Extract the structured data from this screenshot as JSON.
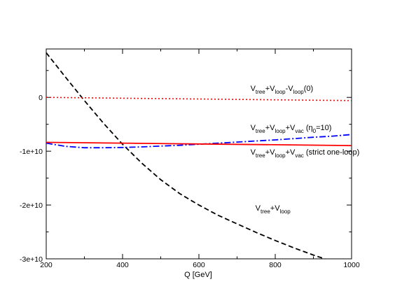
{
  "chart_data": {
    "type": "line",
    "xlabel": "Q [GeV]",
    "ylabel": "",
    "xlim": [
      200,
      1000
    ],
    "ylim": [
      -30000000000,
      9000000000
    ],
    "x_ticks": [
      200,
      400,
      600,
      800,
      1000
    ],
    "x_tick_labels": [
      "200",
      "400",
      "600",
      "800",
      "1000"
    ],
    "y_ticks": [
      0,
      -10000000000,
      -20000000000,
      -30000000000
    ],
    "y_tick_labels": [
      "0",
      "-1e+10",
      "-2e+10",
      "-3e+10"
    ],
    "grid": false,
    "series": [
      {
        "key": "tree_loop",
        "color": "#000000",
        "dash": "dashed",
        "x": [
          200,
          250,
          300,
          350,
          400,
          450,
          500,
          550,
          600,
          650,
          700,
          750,
          800,
          850,
          900,
          950,
          960
        ],
        "y": [
          8300000000,
          3800000000,
          -600000000,
          -4800000000,
          -8700000000,
          -12200000000,
          -15300000000,
          -17900000000,
          -20000000000,
          -21900000000,
          -23500000000,
          -25100000000,
          -26600000000,
          -28000000000,
          -29300000000,
          -30500000000,
          -30800000000
        ]
      },
      {
        "key": "tree_loop_minus_loop0",
        "color": "#ff0000",
        "dash": "dotted",
        "x": [
          200,
          400,
          600,
          800,
          1000
        ],
        "y": [
          0,
          -150000000,
          -300000000,
          -450000000,
          -600000000
        ]
      },
      {
        "key": "tree_loop_vac_eta",
        "color": "#0000ff",
        "dash": "dashdot",
        "x": [
          200,
          250,
          300,
          350,
          400,
          450,
          500,
          550,
          600,
          650,
          700,
          750,
          800,
          850,
          900,
          950,
          1000
        ],
        "y": [
          -8500000000,
          -9100000000,
          -9350000000,
          -9350000000,
          -9300000000,
          -9200000000,
          -9050000000,
          -8900000000,
          -8700000000,
          -8500000000,
          -8300000000,
          -8100000000,
          -7900000000,
          -7650000000,
          -7400000000,
          -7200000000,
          -6900000000
        ]
      },
      {
        "key": "tree_loop_vac_strict",
        "color": "#ff0000",
        "dash": "solid",
        "x": [
          200,
          400,
          600,
          800,
          1000
        ],
        "y": [
          -8350000000,
          -8500000000,
          -8650000000,
          -8800000000,
          -8950000000
        ]
      }
    ],
    "annotations": [
      {
        "key": "tree_loop_minus_loop0",
        "x": 735,
        "y": 1200000000,
        "parts": [
          {
            "t": "V",
            "s": false
          },
          {
            "t": "tree",
            "s": true
          },
          {
            "t": "+V",
            "s": false
          },
          {
            "t": "loop",
            "s": true
          },
          {
            "t": "-V",
            "s": false
          },
          {
            "t": "loop",
            "s": true
          },
          {
            "t": "(0)",
            "s": false
          }
        ]
      },
      {
        "key": "tree_loop_vac_eta",
        "x": 735,
        "y": -6100000000,
        "parts": [
          {
            "t": "V",
            "s": false
          },
          {
            "t": "tree",
            "s": true
          },
          {
            "t": "+V",
            "s": false
          },
          {
            "t": "loop",
            "s": true
          },
          {
            "t": "+V",
            "s": false
          },
          {
            "t": "vac",
            "s": true
          },
          {
            "t": " (η",
            "s": false
          },
          {
            "t": "0",
            "s": true
          },
          {
            "t": "=10)",
            "s": false
          }
        ]
      },
      {
        "key": "tree_loop_vac_strict",
        "x": 735,
        "y": -10600000000,
        "parts": [
          {
            "t": "V",
            "s": false
          },
          {
            "t": "tree",
            "s": true
          },
          {
            "t": "+V",
            "s": false
          },
          {
            "t": "loop",
            "s": true
          },
          {
            "t": "+V",
            "s": false
          },
          {
            "t": "vac",
            "s": true
          },
          {
            "t": " (strict one-loop)",
            "s": false
          }
        ]
      },
      {
        "key": "tree_loop",
        "x": 748,
        "y": -21000000000,
        "parts": [
          {
            "t": "V",
            "s": false
          },
          {
            "t": "tree",
            "s": true
          },
          {
            "t": "+V",
            "s": false
          },
          {
            "t": "loop",
            "s": true
          }
        ]
      }
    ]
  }
}
